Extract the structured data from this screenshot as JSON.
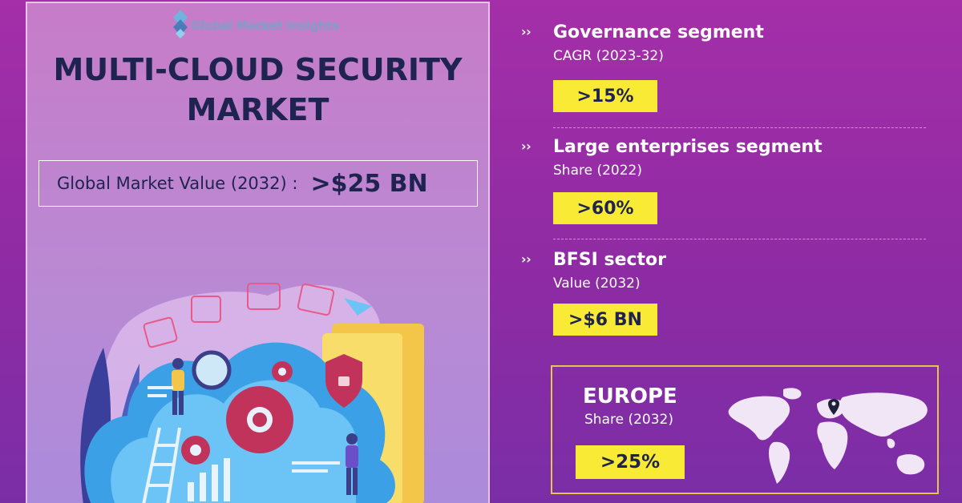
{
  "brand": {
    "name": "Global Market Insights",
    "logo_icon": "diamond-logo-icon"
  },
  "title": {
    "line1": "MULTI-CLOUD SECURITY",
    "line2": "MARKET"
  },
  "global_value": {
    "label": "Global Market Value (2032) :",
    "value": ">$25 BN"
  },
  "segments": [
    {
      "title": "Governance segment",
      "subtitle": "CAGR (2023-32)",
      "value": ">15%"
    },
    {
      "title": "Large enterprises segment",
      "subtitle": "Share (2022)",
      "value": ">60%"
    },
    {
      "title": "BFSI sector",
      "subtitle": "Value (2032)",
      "value": ">$6 BN"
    }
  ],
  "region": {
    "name": "EUROPE",
    "subtitle": "Share (2032)",
    "value": ">25%"
  },
  "bullet_icon": "double-chevron-right-icon",
  "colors": {
    "accent_yellow": "#f9ea35",
    "navy_text": "#1f2350",
    "background_purple": "#a42fa8",
    "panel_lilac": "#c77cc8"
  }
}
